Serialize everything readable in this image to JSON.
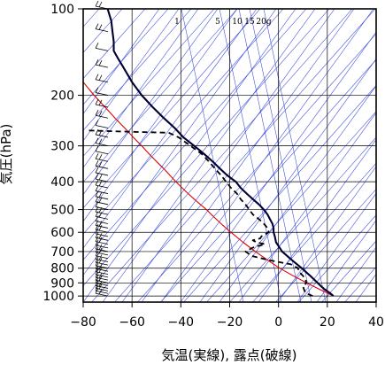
{
  "chart_data": {
    "type": "line",
    "subtype": "skew-t log-p diagram",
    "title": "",
    "xlabel": "気温(実線), 露点(破線)",
    "ylabel": "気圧(hPa)",
    "xlim": [
      -80,
      40
    ],
    "ylim": [
      1050,
      100
    ],
    "y_scale": "log",
    "x_ticks": [
      -80,
      -60,
      -40,
      -20,
      0,
      20,
      40
    ],
    "x_tick_labels": [
      "−80",
      "−60",
      "−40",
      "−20",
      "0",
      "20",
      "40"
    ],
    "y_ticks": [
      100,
      200,
      300,
      400,
      500,
      600,
      700,
      800,
      900,
      1000
    ],
    "y_tick_labels": [
      "100",
      "200",
      "300",
      "400",
      "500",
      "600",
      "700",
      "800",
      "900",
      "1000"
    ],
    "mixing_ratio_labels": [
      "1",
      "5",
      "10",
      "15",
      "20g"
    ],
    "mixing_ratio_values": [
      1,
      5,
      10,
      15,
      20
    ],
    "grid": true,
    "colors": {
      "temperature": "#000033",
      "dewpoint": "#000000",
      "parcel": "#e00000",
      "background_lines": "#3344dd",
      "grid": "#000000"
    },
    "series": [
      {
        "style": "solid",
        "pressure": [
          1000,
          975,
          950,
          925,
          900,
          850,
          800,
          750,
          700,
          650,
          620,
          600,
          580,
          560,
          540,
          520,
          500,
          480,
          460,
          440,
          420,
          400,
          380,
          360,
          340,
          320,
          300,
          280,
          260,
          240,
          220,
          200,
          180,
          160,
          150,
          140,
          130,
          120,
          110,
          100
        ],
        "values": [
          22.5,
          21,
          19,
          17.5,
          16,
          13,
          9.5,
          5.5,
          1.5,
          -1,
          -1.5,
          -2,
          -2,
          -2.5,
          -3.5,
          -4.5,
          -6,
          -8,
          -10.5,
          -13,
          -15.5,
          -17.5,
          -21,
          -24,
          -27,
          -30.5,
          -34.5,
          -39,
          -42.5,
          -47,
          -51.5,
          -56,
          -60,
          -63.5,
          -65.5,
          -67.5,
          -67.5,
          -68,
          -68.5,
          -70
        ]
      },
      {
        "style": "dashed",
        "pressure": [
          1000,
          975,
          950,
          925,
          900,
          875,
          850,
          825,
          800,
          775,
          750,
          725,
          700,
          675,
          660,
          650,
          640,
          630,
          620,
          600,
          580,
          560,
          540,
          520,
          500,
          480,
          460,
          440,
          420,
          400,
          380,
          360,
          340,
          320,
          300,
          280,
          270,
          268,
          265
        ],
        "values": [
          14,
          11,
          10.5,
          10,
          11.5,
          11,
          10,
          8.5,
          8,
          5,
          -4,
          -11,
          -13.5,
          -10,
          -5.5,
          -9,
          -10.5,
          -7.5,
          -7,
          -4,
          -4.5,
          -6,
          -8,
          -10.5,
          -12,
          -13.5,
          -15.5,
          -17,
          -19.5,
          -21.5,
          -23.5,
          -26,
          -28.5,
          -31.5,
          -36,
          -41,
          -45,
          -60,
          -79
        ]
      },
      {
        "style": "solid",
        "pressure": [
          1000,
          950,
          900,
          850,
          800,
          750,
          700,
          650,
          600,
          580,
          560,
          540,
          520,
          500,
          480,
          460,
          440,
          420,
          400,
          380,
          360,
          340,
          320,
          300,
          280,
          260,
          240,
          220,
          200,
          180,
          165
        ],
        "values": [
          22.5,
          17,
          11.5,
          6,
          0.5,
          -4.5,
          -9.5,
          -14.5,
          -19.5,
          -21.5,
          -23.5,
          -25.5,
          -27.5,
          -29.5,
          -32,
          -34.5,
          -37,
          -39.5,
          -42,
          -44.5,
          -47,
          -50,
          -53,
          -56,
          -59.5,
          -63,
          -67,
          -71,
          -75.5,
          -80,
          -84
        ]
      }
    ],
    "wind_barb_pressures": [
      100,
      120,
      140,
      160,
      180,
      200,
      220,
      240,
      260,
      280,
      300,
      320,
      340,
      360,
      380,
      400,
      420,
      440,
      460,
      480,
      500,
      520,
      540,
      560,
      580,
      600,
      620,
      640,
      660,
      680,
      700,
      720,
      740,
      760,
      780,
      800,
      820,
      840,
      860,
      880,
      900,
      920,
      940,
      960,
      980,
      1000
    ]
  }
}
